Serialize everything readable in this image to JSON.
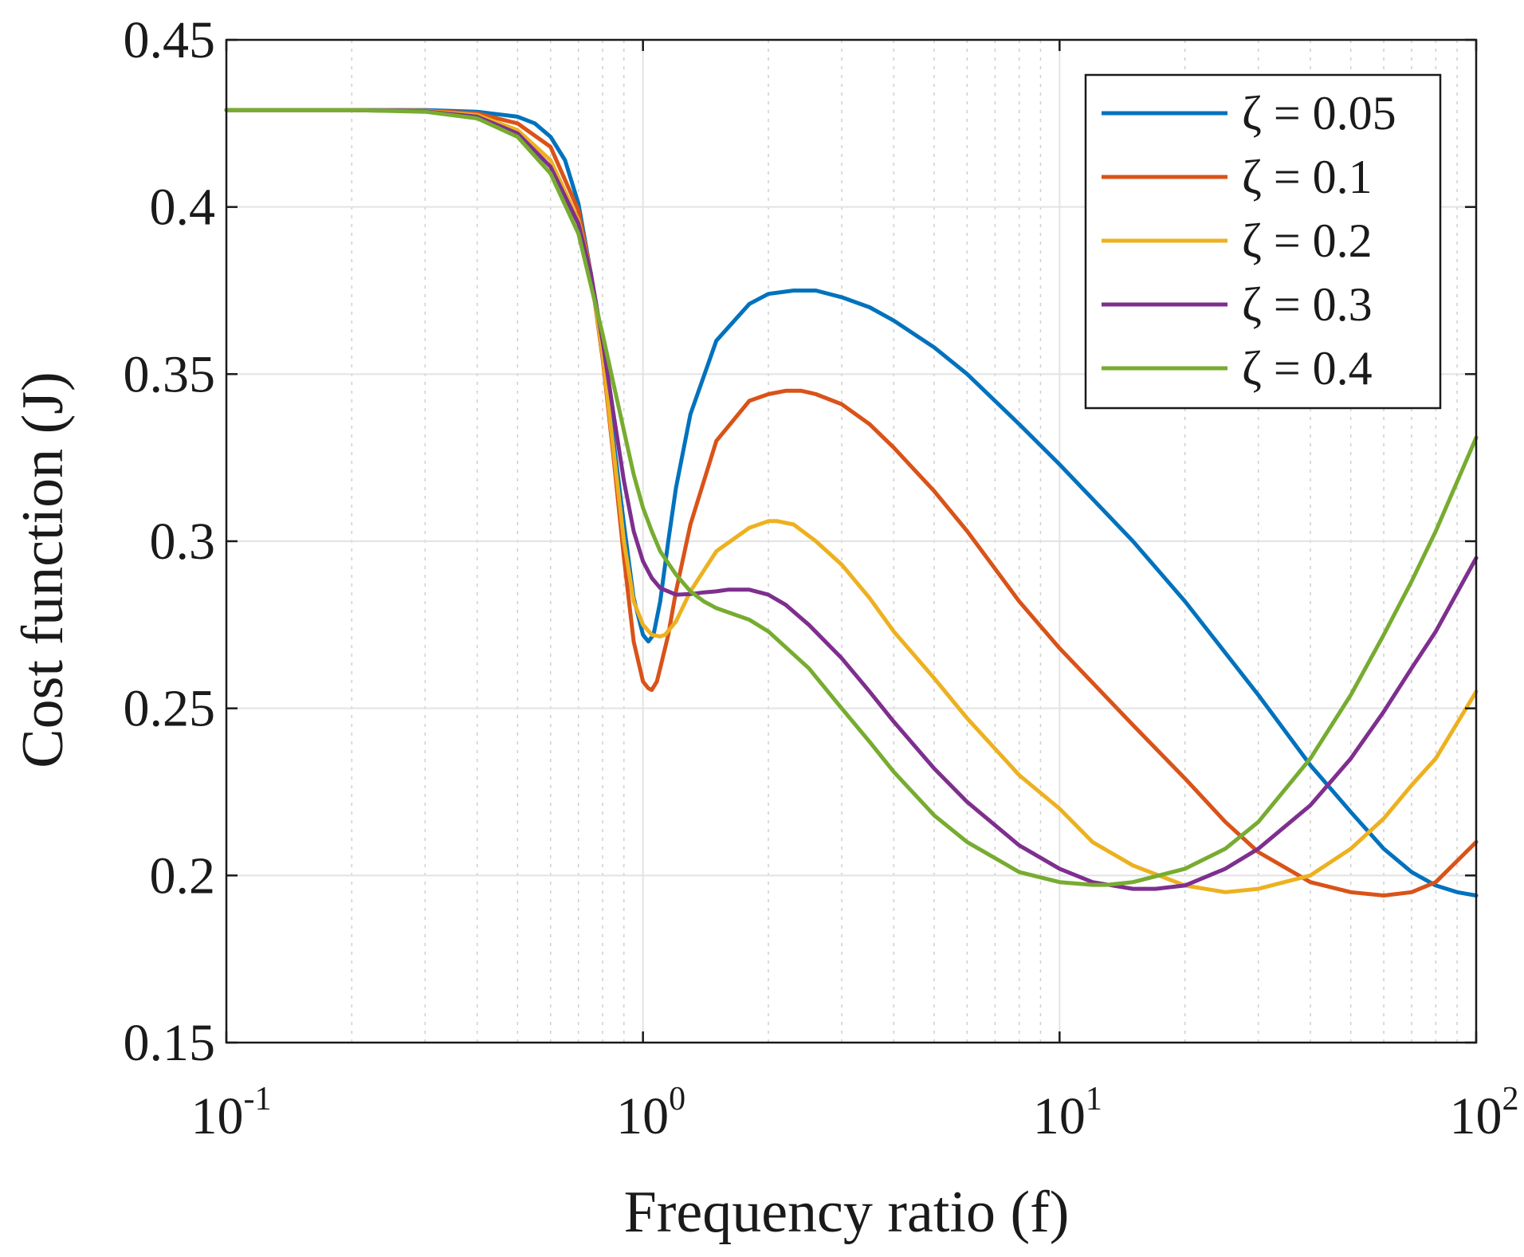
{
  "chart_data": {
    "type": "line",
    "title": "",
    "xlabel": "Frequency ratio (f)",
    "ylabel": "Cost function (J)",
    "xscale": "log",
    "xlim": [
      0.1,
      100
    ],
    "ylim": [
      0.15,
      0.45
    ],
    "xticks": [
      {
        "value": 0.1,
        "base": "10",
        "exp": "-1"
      },
      {
        "value": 1,
        "base": "10",
        "exp": "0"
      },
      {
        "value": 10,
        "base": "10",
        "exp": "1"
      },
      {
        "value": 100,
        "base": "10",
        "exp": "2"
      }
    ],
    "yticks": [
      "0.15",
      "0.2",
      "0.25",
      "0.3",
      "0.35",
      "0.4",
      "0.45"
    ],
    "grid": true,
    "legend_position": "top-right",
    "series": [
      {
        "name": "ζ = 0.05",
        "color": "#0072BD",
        "x": [
          0.1,
          0.2,
          0.3,
          0.4,
          0.5,
          0.55,
          0.6,
          0.65,
          0.7,
          0.75,
          0.8,
          0.85,
          0.9,
          0.95,
          1.0,
          1.03,
          1.06,
          1.1,
          1.15,
          1.2,
          1.3,
          1.5,
          1.8,
          2.0,
          2.3,
          2.6,
          3.0,
          3.5,
          4.0,
          5.0,
          6.0,
          8.0,
          10,
          15,
          20,
          30,
          40,
          50,
          60,
          70,
          80,
          90,
          100
        ],
        "y": [
          0.429,
          0.429,
          0.429,
          0.4285,
          0.427,
          0.425,
          0.421,
          0.414,
          0.401,
          0.38,
          0.355,
          0.33,
          0.305,
          0.283,
          0.272,
          0.27,
          0.272,
          0.282,
          0.3,
          0.316,
          0.338,
          0.36,
          0.371,
          0.374,
          0.375,
          0.375,
          0.373,
          0.37,
          0.366,
          0.358,
          0.35,
          0.335,
          0.323,
          0.3,
          0.282,
          0.254,
          0.233,
          0.219,
          0.208,
          0.201,
          0.197,
          0.195,
          0.194
        ]
      },
      {
        "name": "ζ = 0.1",
        "color": "#D95319",
        "x": [
          0.1,
          0.2,
          0.3,
          0.4,
          0.5,
          0.6,
          0.7,
          0.75,
          0.8,
          0.85,
          0.9,
          0.95,
          1.0,
          1.03,
          1.05,
          1.08,
          1.1,
          1.15,
          1.2,
          1.3,
          1.5,
          1.8,
          2.0,
          2.2,
          2.4,
          2.6,
          3.0,
          3.5,
          4.0,
          5.0,
          6.0,
          8.0,
          10,
          15,
          20,
          25,
          30,
          40,
          50,
          60,
          70,
          80,
          100
        ],
        "y": [
          0.429,
          0.429,
          0.4288,
          0.428,
          0.425,
          0.418,
          0.399,
          0.38,
          0.355,
          0.325,
          0.295,
          0.27,
          0.258,
          0.256,
          0.2555,
          0.258,
          0.262,
          0.272,
          0.285,
          0.305,
          0.33,
          0.342,
          0.344,
          0.345,
          0.345,
          0.344,
          0.341,
          0.335,
          0.328,
          0.315,
          0.303,
          0.282,
          0.268,
          0.245,
          0.229,
          0.216,
          0.207,
          0.198,
          0.195,
          0.194,
          0.195,
          0.198,
          0.21
        ]
      },
      {
        "name": "ζ = 0.2",
        "color": "#EDB120",
        "x": [
          0.1,
          0.2,
          0.3,
          0.4,
          0.5,
          0.6,
          0.7,
          0.75,
          0.8,
          0.85,
          0.9,
          0.95,
          1.0,
          1.05,
          1.1,
          1.13,
          1.2,
          1.3,
          1.5,
          1.8,
          2.0,
          2.1,
          2.3,
          2.6,
          3.0,
          3.5,
          4.0,
          5.0,
          6.0,
          8.0,
          10,
          12,
          15,
          20,
          25,
          30,
          40,
          50,
          60,
          70,
          80,
          100
        ],
        "y": [
          0.429,
          0.429,
          0.4287,
          0.4275,
          0.423,
          0.414,
          0.396,
          0.38,
          0.356,
          0.327,
          0.3,
          0.282,
          0.275,
          0.272,
          0.2715,
          0.272,
          0.276,
          0.285,
          0.297,
          0.304,
          0.306,
          0.306,
          0.305,
          0.3,
          0.293,
          0.283,
          0.273,
          0.259,
          0.247,
          0.23,
          0.22,
          0.21,
          0.203,
          0.197,
          0.195,
          0.196,
          0.2,
          0.208,
          0.217,
          0.227,
          0.235,
          0.255
        ]
      },
      {
        "name": "ζ = 0.3",
        "color": "#7E2F8E",
        "x": [
          0.1,
          0.2,
          0.3,
          0.4,
          0.5,
          0.6,
          0.7,
          0.75,
          0.8,
          0.85,
          0.9,
          0.95,
          1.0,
          1.05,
          1.1,
          1.2,
          1.3,
          1.4,
          1.5,
          1.6,
          1.8,
          2.0,
          2.2,
          2.5,
          3.0,
          3.5,
          4.0,
          5.0,
          6.0,
          8.0,
          10,
          12,
          15,
          17,
          20,
          25,
          30,
          40,
          50,
          60,
          70,
          80,
          100
        ],
        "y": [
          0.429,
          0.429,
          0.4286,
          0.427,
          0.422,
          0.412,
          0.395,
          0.38,
          0.36,
          0.338,
          0.318,
          0.303,
          0.294,
          0.289,
          0.286,
          0.284,
          0.2842,
          0.2847,
          0.285,
          0.2855,
          0.2855,
          0.284,
          0.281,
          0.275,
          0.265,
          0.255,
          0.246,
          0.232,
          0.222,
          0.209,
          0.202,
          0.198,
          0.196,
          0.196,
          0.197,
          0.202,
          0.208,
          0.221,
          0.235,
          0.249,
          0.262,
          0.273,
          0.295
        ]
      },
      {
        "name": "ζ = 0.4",
        "color": "#77AC30",
        "x": [
          0.1,
          0.2,
          0.3,
          0.4,
          0.5,
          0.6,
          0.7,
          0.8,
          0.85,
          0.9,
          0.95,
          1.0,
          1.05,
          1.1,
          1.2,
          1.3,
          1.4,
          1.5,
          1.8,
          2.0,
          2.5,
          3.0,
          3.5,
          4.0,
          5.0,
          6.0,
          8.0,
          10,
          12,
          13,
          15,
          20,
          25,
          30,
          40,
          50,
          60,
          70,
          80,
          100
        ],
        "y": [
          0.429,
          0.429,
          0.4285,
          0.4265,
          0.421,
          0.41,
          0.392,
          0.362,
          0.347,
          0.333,
          0.32,
          0.31,
          0.303,
          0.297,
          0.29,
          0.285,
          0.282,
          0.28,
          0.2765,
          0.273,
          0.262,
          0.25,
          0.24,
          0.231,
          0.218,
          0.21,
          0.201,
          0.198,
          0.1972,
          0.1972,
          0.198,
          0.202,
          0.208,
          0.216,
          0.235,
          0.254,
          0.272,
          0.288,
          0.303,
          0.331
        ]
      }
    ]
  }
}
